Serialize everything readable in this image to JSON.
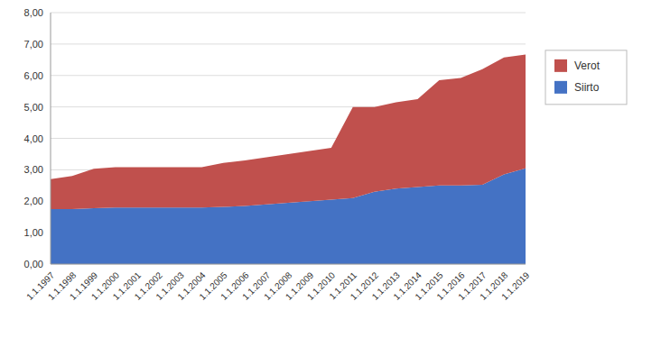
{
  "chart_data": {
    "type": "area",
    "stacked": true,
    "categories": [
      "1.1.1997",
      "1.1.1998",
      "1.1.1999",
      "1.1.2000",
      "1.1.2001",
      "1.1.2002",
      "1.1.2003",
      "1.1.2004",
      "1.1.2005",
      "1.1.2006",
      "1.1.2007",
      "1.1.2008",
      "1.1.2009",
      "1.1.2010",
      "1.1.2011",
      "1.1.2012",
      "1.1.2013",
      "1.1.2014",
      "1.1.2015",
      "1.1.2016",
      "1.1.2017",
      "1.1.2018",
      "1.1.2019"
    ],
    "series": [
      {
        "name": "Siirto",
        "color": "#4472C4",
        "values": [
          1.75,
          1.75,
          1.78,
          1.8,
          1.8,
          1.8,
          1.8,
          1.8,
          1.82,
          1.85,
          1.9,
          1.95,
          2.0,
          2.05,
          2.1,
          2.3,
          2.4,
          2.45,
          2.5,
          2.5,
          2.52,
          2.85,
          3.05
        ]
      },
      {
        "name": "Verot",
        "color": "#C0504D",
        "values": [
          0.95,
          1.05,
          1.25,
          1.28,
          1.28,
          1.28,
          1.28,
          1.28,
          1.4,
          1.45,
          1.5,
          1.55,
          1.6,
          1.65,
          2.9,
          2.7,
          2.75,
          2.8,
          3.35,
          3.42,
          3.68,
          3.72,
          3.62
        ]
      }
    ],
    "ylim": [
      0.0,
      8.0
    ],
    "yticks": [
      {
        "value": 0.0,
        "label": "0,00"
      },
      {
        "value": 1.0,
        "label": "1,00"
      },
      {
        "value": 2.0,
        "label": "2,00"
      },
      {
        "value": 3.0,
        "label": "3,00"
      },
      {
        "value": 4.0,
        "label": "4,00"
      },
      {
        "value": 5.0,
        "label": "5,00"
      },
      {
        "value": 6.0,
        "label": "6,00"
      },
      {
        "value": 7.0,
        "label": "7,00"
      },
      {
        "value": 8.0,
        "label": "8,00"
      }
    ],
    "grid": true,
    "legend": "right"
  }
}
